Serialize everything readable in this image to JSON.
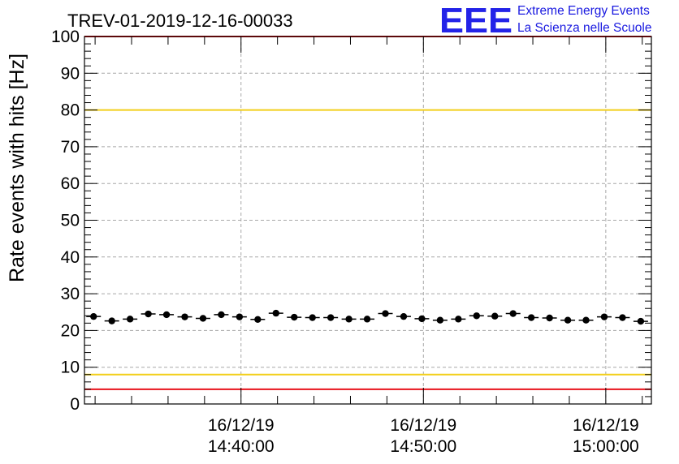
{
  "chart_data": {
    "type": "scatter",
    "title": "TREV-01-2019-12-16-00033",
    "xlabel": "",
    "ylabel": "Rate events with hits [Hz]",
    "ylim": [
      0,
      100
    ],
    "yticks": [
      0,
      10,
      20,
      30,
      40,
      50,
      60,
      70,
      80,
      90,
      100
    ],
    "xlim": [
      "16/12/19 14:31:25",
      "16/12/19 15:02:30"
    ],
    "xticks": [
      {
        "time": "14:40:00",
        "date": "16/12/19",
        "time_label": "14:40:00"
      },
      {
        "time": "14:50:00",
        "date": "16/12/19",
        "time_label": "14:50:00"
      },
      {
        "time": "15:00:00",
        "date": "16/12/19",
        "time_label": "15:00:00"
      }
    ],
    "grid": true,
    "error_bar_half_width_seconds": 24,
    "series": [
      {
        "x": [
          "14:31:55",
          "14:32:55",
          "14:33:55",
          "14:34:55",
          "14:35:55",
          "14:36:55",
          "14:37:55",
          "14:38:55",
          "14:39:55",
          "14:40:55",
          "14:41:55",
          "14:42:55",
          "14:43:55",
          "14:44:55",
          "14:45:55",
          "14:46:55",
          "14:47:55",
          "14:48:55",
          "14:49:55",
          "14:50:55",
          "14:51:55",
          "14:52:55",
          "14:53:55",
          "14:54:55",
          "14:55:55",
          "14:56:55",
          "14:57:55",
          "14:58:55",
          "14:59:55",
          "15:00:55",
          "15:01:55"
        ],
        "values": [
          23.8,
          22.6,
          23.1,
          24.5,
          24.3,
          23.7,
          23.3,
          24.3,
          23.7,
          23.0,
          24.7,
          23.6,
          23.5,
          23.5,
          23.1,
          23.1,
          24.6,
          23.8,
          23.2,
          22.8,
          23.1,
          24.0,
          23.9,
          24.6,
          23.5,
          23.4,
          22.8,
          22.8,
          23.7,
          23.5,
          22.5
        ]
      }
    ],
    "reference_lines": [
      {
        "value": 100,
        "color": "#e8131b"
      },
      {
        "value": 80,
        "color": "#f2cf1a"
      },
      {
        "value": 8,
        "color": "#f2cf1a"
      },
      {
        "value": 4,
        "color": "#e8131b"
      }
    ]
  },
  "logo": {
    "letters": "EEE",
    "line1": "Extreme Energy Events",
    "line2": "La Scienza nelle Scuole",
    "color": "#2323e8"
  }
}
